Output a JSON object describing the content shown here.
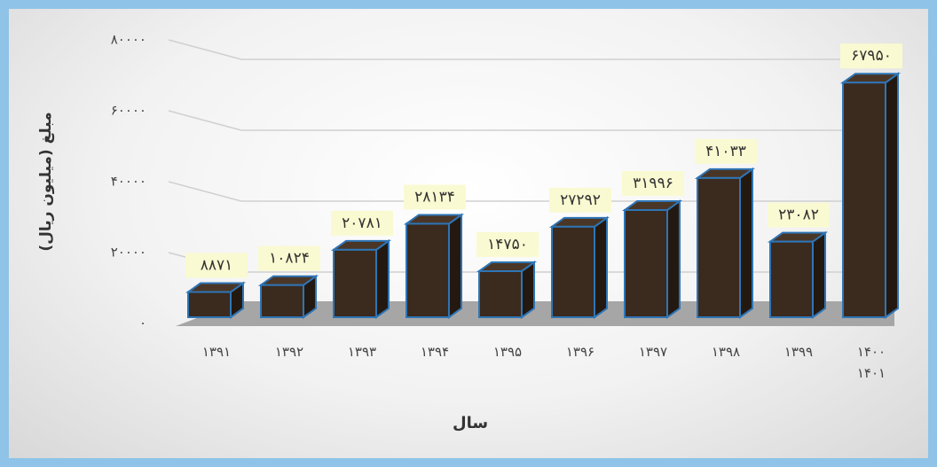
{
  "chart_data": {
    "type": "bar3d",
    "x_label": "سال",
    "y_label": "مبلغ (میلیون ریال)",
    "categories": [
      "۱۳۹۱",
      "۱۳۹۲",
      "۱۳۹۳",
      "۱۳۹۴",
      "۱۳۹۵",
      "۱۳۹۶",
      "۱۳۹۷",
      "۱۳۹۸",
      "۱۳۹۹",
      "۱۴۰۰ ۱۴۰۱"
    ],
    "values": [
      8871,
      10824,
      20781,
      28134,
      14750,
      27292,
      31996,
      41033,
      23082,
      67950
    ],
    "value_labels": [
      "۸۸۷۱",
      "۱۰۸۲۴",
      "۲۰۷۸۱",
      "۲۸۱۳۴",
      "۱۴۷۵۰",
      "۲۷۲۹۲",
      "۳۱۹۹۶",
      "۴۱۰۳۳",
      "۲۳۰۸۲",
      "۶۷۹۵۰"
    ],
    "color": "#3b2a1e",
    "edge_color": "#2e75b6",
    "ylim": [
      0,
      80000
    ],
    "yticks": [
      {
        "value": 0,
        "label": "۰"
      },
      {
        "value": 20000,
        "label": "۲۰۰۰۰"
      },
      {
        "value": 40000,
        "label": "۴۰۰۰۰"
      },
      {
        "value": 60000,
        "label": "۶۰۰۰۰"
      },
      {
        "value": 80000,
        "label": "۸۰۰۰۰"
      }
    ],
    "grid": true
  }
}
